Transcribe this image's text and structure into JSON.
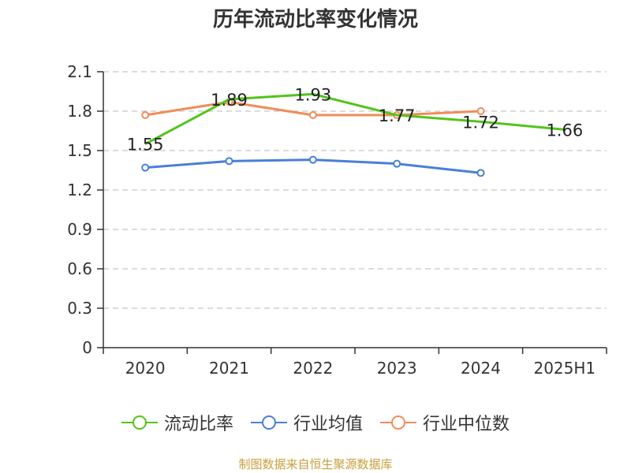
{
  "title": "历年流动比率变化情况",
  "footer": "制图数据来自恒生聚源数据库",
  "chart_data": {
    "type": "line",
    "categories": [
      "2020",
      "2021",
      "2022",
      "2023",
      "2024",
      "2025H1"
    ],
    "ylim": [
      0,
      2.1
    ],
    "yticks": [
      0,
      0.3,
      0.6,
      0.9,
      1.2,
      1.5,
      1.8,
      2.1
    ],
    "ytick_labels": [
      "0",
      "0.3",
      "0.6",
      "0.9",
      "1.2",
      "1.5",
      "1.8",
      "2.1"
    ],
    "grid": true,
    "legend_position": "bottom",
    "series": [
      {
        "name": "流动比率",
        "color": "#52c41a",
        "values": [
          1.55,
          1.89,
          1.93,
          1.77,
          1.72,
          1.66
        ],
        "labels": [
          "1.55",
          "1.89",
          "1.93",
          "1.77",
          "1.72",
          "1.66"
        ],
        "show_markers": false
      },
      {
        "name": "行业均值",
        "color": "#4a7fd8",
        "values": [
          1.37,
          1.42,
          1.43,
          1.4,
          1.33,
          null
        ],
        "show_markers": true
      },
      {
        "name": "行业中位数",
        "color": "#f08c5a",
        "values": [
          1.77,
          1.87,
          1.77,
          1.77,
          1.8,
          null
        ],
        "show_markers": true
      }
    ]
  }
}
